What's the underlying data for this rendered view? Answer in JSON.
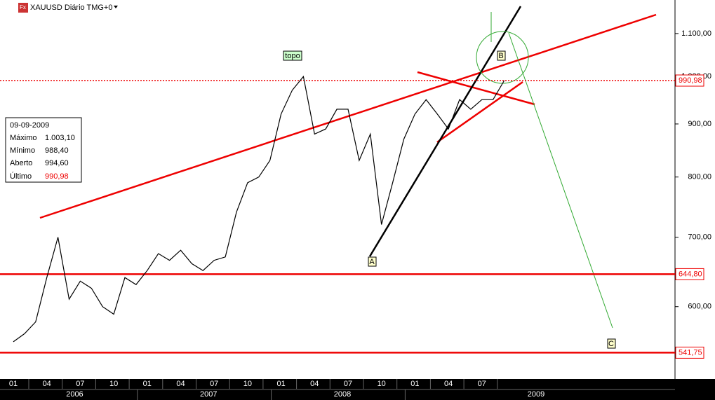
{
  "chart_data": {
    "type": "line",
    "title": "XAUUSD Diário TMG+0",
    "categories": [
      "2006-01",
      "2006-02",
      "2006-03",
      "2006-04",
      "2006-05",
      "2006-06",
      "2006-07",
      "2006-08",
      "2006-09",
      "2006-10",
      "2006-11",
      "2006-12",
      "2007-01",
      "2007-02",
      "2007-03",
      "2007-04",
      "2007-05",
      "2007-06",
      "2007-07",
      "2007-08",
      "2007-09",
      "2007-10",
      "2007-11",
      "2007-12",
      "2008-01",
      "2008-02",
      "2008-03",
      "2008-04",
      "2008-05",
      "2008-06",
      "2008-07",
      "2008-08",
      "2008-09",
      "2008-10",
      "2008-11",
      "2008-12",
      "2009-01",
      "2009-02",
      "2009-03",
      "2009-04",
      "2009-05",
      "2009-06",
      "2009-07",
      "2009-08",
      "2009-09",
      "2009-10",
      "2009-11",
      "2009-12",
      "2010-01",
      "2010-02",
      "2010-03"
    ],
    "values": [
      555,
      565,
      580,
      640,
      700,
      610,
      635,
      625,
      600,
      590,
      640,
      630,
      650,
      675,
      665,
      680,
      660,
      650,
      665,
      670,
      740,
      790,
      800,
      830,
      920,
      970,
      1000,
      880,
      890,
      930,
      930,
      830,
      880,
      720,
      790,
      870,
      920,
      950,
      920,
      890,
      950,
      930,
      950,
      950,
      991,
      null,
      null,
      null,
      null,
      null,
      null
    ],
    "color": "#000000",
    "log_scale": true,
    "ylim": [
      511,
      1185
    ],
    "yticks": [
      {
        "value": 600,
        "label": "600,00"
      },
      {
        "value": 700,
        "label": "700,00"
      },
      {
        "value": 800,
        "label": "800,00"
      },
      {
        "value": 900,
        "label": "900,00"
      },
      {
        "value": 1000,
        "label": "1.000,00"
      },
      {
        "value": 1100,
        "label": "1.100,00"
      }
    ],
    "xticks": [
      {
        "value": "2006-01",
        "label": "01"
      },
      {
        "value": "2006-04",
        "label": "04"
      },
      {
        "value": "2006-07",
        "label": "07"
      },
      {
        "value": "2006-10",
        "label": "10"
      },
      {
        "value": "2007-01",
        "label": "01"
      },
      {
        "value": "2007-04",
        "label": "04"
      },
      {
        "value": "2007-07",
        "label": "07"
      },
      {
        "value": "2007-10",
        "label": "10"
      },
      {
        "value": "2008-01",
        "label": "01"
      },
      {
        "value": "2008-04",
        "label": "04"
      },
      {
        "value": "2008-07",
        "label": "07"
      },
      {
        "value": "2008-10",
        "label": "10"
      },
      {
        "value": "2009-01",
        "label": "01"
      },
      {
        "value": "2009-04",
        "label": "04"
      },
      {
        "value": "2009-07",
        "label": "07"
      }
    ],
    "year_labels": [
      "2006",
      "2007",
      "2008",
      "2009"
    ],
    "levels": [
      {
        "value": 990.98,
        "label": "990,98",
        "style": "dotted"
      },
      {
        "value": 644.8,
        "label": "644,80",
        "style": "solid"
      },
      {
        "value": 541.75,
        "label": "541,75",
        "style": "solid"
      }
    ],
    "annotations": [
      "topo",
      "A",
      "B",
      "C"
    ],
    "info_box": {
      "date": "09-09-2009",
      "rows": [
        {
          "label": "Máximo",
          "value": "1.003,10"
        },
        {
          "label": "Mínimo",
          "value": "988,40"
        },
        {
          "label": "Aberto",
          "value": "994,60"
        },
        {
          "label": "Último",
          "value": "990,98"
        }
      ]
    }
  }
}
